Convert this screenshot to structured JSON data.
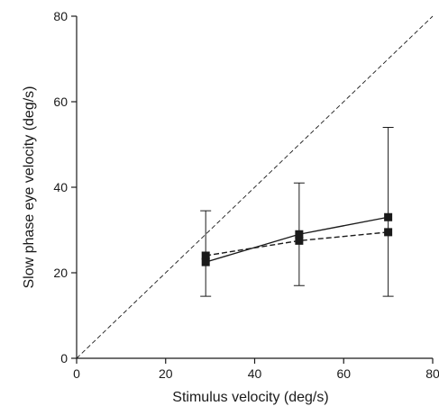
{
  "chart_data": {
    "type": "scatter",
    "title": "",
    "xlabel": "Stimulus velocity (deg/s)",
    "ylabel": "Slow phase eye velocity (deg/s)",
    "xlim": [
      0,
      80
    ],
    "ylim": [
      0,
      80
    ],
    "x_ticks": [
      "0",
      "20",
      "40",
      "60",
      "80"
    ],
    "y_ticks": [
      "0",
      "20",
      "40",
      "60",
      "80"
    ],
    "grid": false,
    "legend": "none",
    "reference_line": {
      "style": "dashed",
      "x": [
        0,
        80
      ],
      "y": [
        0,
        80
      ]
    },
    "series": [
      {
        "line_style": "solid",
        "marker": "square",
        "x": [
          29,
          50,
          70
        ],
        "y": [
          22.5,
          29,
          33
        ],
        "error_low": [
          14.5,
          17,
          14.5
        ],
        "error_high": [
          34.5,
          41,
          54
        ]
      },
      {
        "line_style": "dashed",
        "marker": "square",
        "x": [
          29,
          50,
          70
        ],
        "y": [
          24,
          27.5,
          29.5
        ]
      }
    ]
  }
}
